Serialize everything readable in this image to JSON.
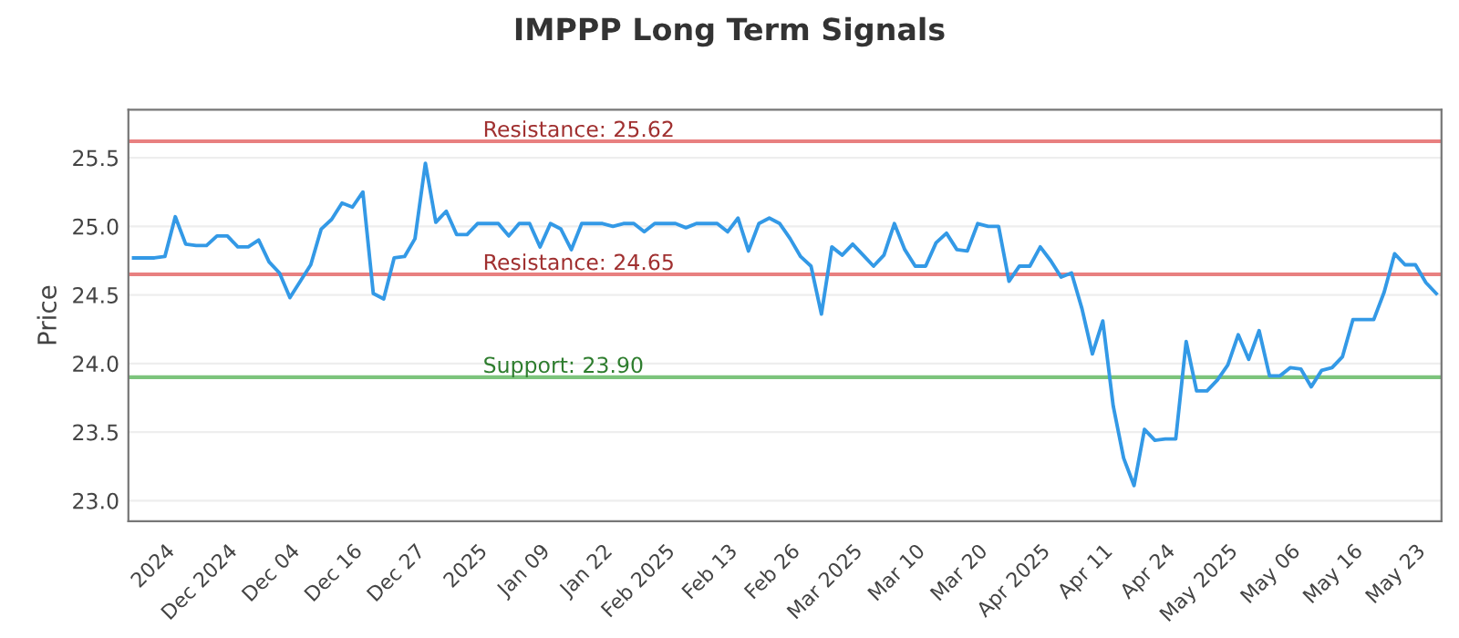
{
  "chart_data": {
    "type": "line",
    "title": "IMPPP Long Term Signals",
    "ylabel": "Price",
    "categories": [
      null,
      null,
      null,
      "2024",
      null,
      null,
      null,
      null,
      null,
      "Dec 2024",
      null,
      null,
      null,
      null,
      null,
      "Dec 04",
      null,
      null,
      null,
      null,
      null,
      "Dec 16",
      null,
      null,
      null,
      null,
      null,
      "Dec 27",
      null,
      null,
      null,
      null,
      null,
      "2025",
      null,
      null,
      null,
      null,
      null,
      "Jan 09",
      null,
      null,
      null,
      null,
      null,
      "Jan 22",
      null,
      null,
      null,
      null,
      null,
      "Feb 2025",
      null,
      null,
      null,
      null,
      null,
      "Feb 13",
      null,
      null,
      null,
      null,
      null,
      "Feb 26",
      null,
      null,
      null,
      null,
      null,
      "Mar 2025",
      null,
      null,
      null,
      null,
      null,
      "Mar 10",
      null,
      null,
      null,
      null,
      null,
      "Mar 20",
      null,
      null,
      null,
      null,
      null,
      "Apr 2025",
      null,
      null,
      null,
      null,
      null,
      "Apr 11",
      null,
      null,
      null,
      null,
      null,
      "Apr 24",
      null,
      null,
      null,
      null,
      null,
      "May 2025",
      null,
      null,
      null,
      null,
      null,
      "May 06",
      null,
      null,
      null,
      null,
      null,
      "May 16",
      null,
      null,
      null,
      null,
      null,
      "May 23",
      null,
      null
    ],
    "series": [
      {
        "color": "#3399e6",
        "values": [
          24.77,
          24.77,
          24.77,
          24.78,
          25.07,
          24.87,
          24.86,
          24.86,
          24.93,
          24.93,
          24.85,
          24.85,
          24.9,
          24.74,
          24.66,
          24.48,
          24.6,
          24.72,
          24.98,
          25.05,
          25.17,
          25.14,
          25.25,
          24.51,
          24.47,
          24.77,
          24.78,
          24.91,
          25.46,
          25.03,
          25.11,
          24.94,
          24.94,
          25.02,
          25.02,
          25.02,
          24.93,
          25.02,
          25.02,
          24.85,
          25.02,
          24.98,
          24.83,
          25.02,
          25.02,
          25.02,
          25.0,
          25.02,
          25.02,
          24.96,
          25.02,
          25.02,
          25.02,
          24.99,
          25.02,
          25.02,
          25.02,
          24.96,
          25.06,
          24.82,
          25.02,
          25.06,
          25.02,
          24.91,
          24.78,
          24.71,
          24.36,
          24.85,
          24.79,
          24.87,
          24.79,
          24.71,
          24.79,
          25.02,
          24.83,
          24.71,
          24.71,
          24.88,
          24.95,
          24.83,
          24.82,
          25.02,
          25.0,
          25.0,
          24.6,
          24.71,
          24.71,
          24.85,
          24.75,
          24.63,
          24.66,
          24.4,
          24.07,
          24.31,
          23.69,
          23.31,
          23.11,
          23.52,
          23.44,
          23.45,
          23.45,
          24.16,
          23.8,
          23.8,
          23.88,
          23.99,
          24.21,
          24.03,
          24.24,
          23.91,
          23.91,
          23.97,
          23.96,
          23.83,
          23.95,
          23.97,
          24.05,
          24.32,
          24.32,
          24.32,
          24.52,
          24.8,
          24.72,
          24.72,
          24.59,
          24.51
        ]
      }
    ],
    "ylim": [
      22.85,
      25.85
    ],
    "yticks": [
      {
        "value": 23.0,
        "label": "23.0"
      },
      {
        "value": 23.5,
        "label": "23.5"
      },
      {
        "value": 24.0,
        "label": "24.0"
      },
      {
        "value": 24.5,
        "label": "24.5"
      },
      {
        "value": 25.0,
        "label": "25.0"
      },
      {
        "value": 25.5,
        "label": "25.5"
      }
    ],
    "grid": "y",
    "marker": "none",
    "line_style": "solid",
    "ref_lines": [
      {
        "axis": "y",
        "value": 25.62,
        "label": "Resistance: 25.62",
        "color": "#e88080"
      },
      {
        "axis": "y",
        "value": 24.65,
        "label": "Resistance: 24.65",
        "color": "#e88080"
      },
      {
        "axis": "y",
        "value": 23.9,
        "label": "Support: 23.90",
        "color": "#7cc47c"
      }
    ]
  }
}
